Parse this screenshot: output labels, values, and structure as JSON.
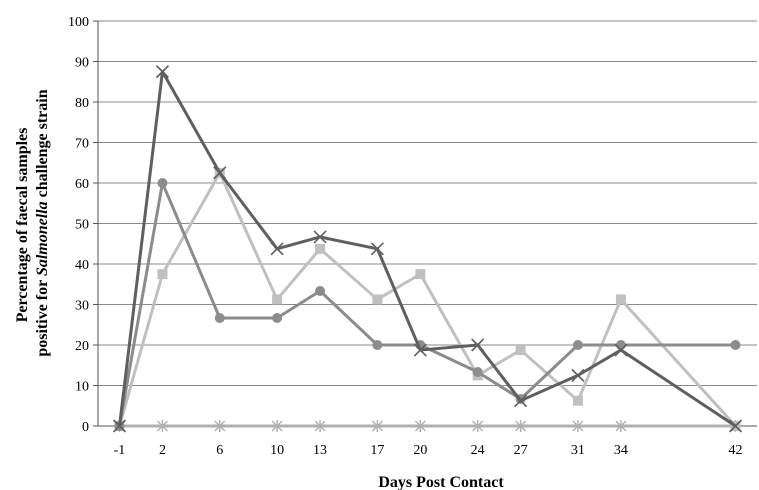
{
  "chart_data": {
    "type": "line",
    "title": "",
    "xlabel": "Days Post Contact",
    "ylabel": {
      "line1": "Percentage of faecal samples",
      "line2_before": "positive for ",
      "line2_italic": "Salmonella",
      "line2_after": " challenge strain"
    },
    "categories": [
      "-1",
      "2",
      "6",
      "10",
      "13",
      "17",
      "20",
      "24",
      "27",
      "31",
      "34",
      "42"
    ],
    "x": [
      -1,
      2,
      6,
      10,
      13,
      17,
      20,
      24,
      27,
      31,
      34,
      42
    ],
    "ylim": [
      0,
      100
    ],
    "yticks": [
      0,
      10,
      20,
      30,
      40,
      50,
      60,
      70,
      80,
      90,
      100
    ],
    "grid": true,
    "legend": "none",
    "series": [
      {
        "marker": "x",
        "color": "#5f5f5f",
        "values": [
          0,
          87.5,
          62.5,
          43.75,
          46.67,
          43.75,
          18.75,
          20,
          6.25,
          12.5,
          18.75,
          0
        ]
      },
      {
        "marker": "circle",
        "color": "#8c8c8c",
        "values": [
          0,
          60,
          26.67,
          26.67,
          33.33,
          20,
          20,
          13.33,
          6.67,
          20,
          20,
          20
        ]
      },
      {
        "marker": "square",
        "color": "#c0c0c0",
        "values": [
          0,
          37.5,
          62.5,
          31.25,
          43.75,
          31.25,
          37.5,
          12.5,
          18.75,
          6.25,
          31.25,
          0
        ]
      },
      {
        "marker": "star",
        "color": "#b0b0b0",
        "values": [
          0,
          0,
          0,
          0,
          0,
          0,
          0,
          0,
          0,
          0,
          0,
          0
        ]
      }
    ]
  }
}
